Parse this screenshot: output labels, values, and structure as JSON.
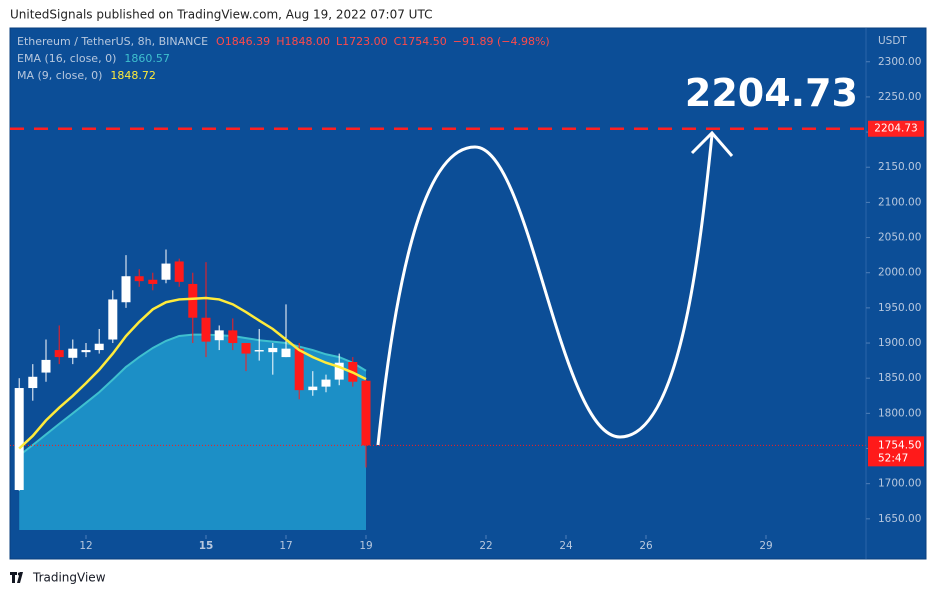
{
  "page_header": "UnitedSignals published on TradingView.com, Aug 19, 2022 07:07 UTC",
  "footer": "TradingView",
  "chart_data": {
    "type": "candlestick",
    "symbol": "Ethereum / TetherUS, 8h, BINANCE",
    "ohlc_text": [
      "O1846.39",
      "H1848.00",
      "L1723.00",
      "C1754.50"
    ],
    "change_text": "−91.89 (−4.98%)",
    "currency": "USDT",
    "countdown": "52:47",
    "x": [
      10.33,
      10.67,
      11,
      11.33,
      11.67,
      12,
      12.33,
      12.67,
      13,
      13.33,
      13.67,
      14,
      14.33,
      14.67,
      15,
      15.33,
      15.67,
      16,
      16.33,
      16.67,
      17,
      17.33,
      17.67,
      18,
      18.33,
      18.67,
      19
    ],
    "open": [
      1691,
      1836,
      1858,
      1890,
      1879,
      1887,
      1890,
      1905,
      1958,
      1995,
      1990,
      1990,
      2016,
      1984,
      1936,
      1904,
      1918,
      1900,
      1888,
      1887,
      1880,
      1892,
      1833,
      1838,
      1848,
      1873,
      1846.39
    ],
    "high": [
      1850,
      1870,
      1905,
      1925,
      1905,
      1900,
      1920,
      1975,
      2025,
      2005,
      2000,
      2033,
      2020,
      2000,
      2015,
      1925,
      1935,
      1900,
      1920,
      1900,
      1955,
      1900,
      1860,
      1855,
      1885,
      1880,
      1848
    ],
    "low": [
      1690,
      1818,
      1845,
      1870,
      1870,
      1880,
      1885,
      1900,
      1950,
      1980,
      1975,
      1985,
      1980,
      1900,
      1880,
      1890,
      1890,
      1860,
      1875,
      1855,
      1880,
      1820,
      1825,
      1830,
      1840,
      1838,
      1723
    ],
    "close": [
      1836,
      1852,
      1876,
      1880,
      1892,
      1890,
      1899,
      1962,
      1995,
      1988,
      1984,
      2013,
      1987,
      1936,
      1902,
      1918,
      1900,
      1885,
      1890,
      1893,
      1892,
      1833,
      1838,
      1848,
      1872,
      1845,
      1754.5
    ],
    "up_color": "#ffffff",
    "down_color": "#ff1a1a",
    "series": [
      {
        "name": "EMA (16, close, 0)",
        "color": "#1c8fc6",
        "line_color": "#3fc0cf",
        "values": [
          1740,
          1755,
          1770,
          1785,
          1800,
          1815,
          1830,
          1848,
          1866,
          1880,
          1893,
          1903,
          1910,
          1912,
          1912,
          1911,
          1910,
          1907,
          1904,
          1902,
          1900,
          1895,
          1890,
          1884,
          1880,
          1872,
          1860.57
        ]
      },
      {
        "name": "MA (9, close, 0)",
        "color": "#ffeb3b",
        "values": [
          1750,
          1768,
          1790,
          1808,
          1825,
          1843,
          1862,
          1885,
          1910,
          1930,
          1948,
          1958,
          1962,
          1963,
          1964,
          1962,
          1955,
          1944,
          1932,
          1920,
          1905,
          1890,
          1880,
          1872,
          1866,
          1858,
          1848.72
        ]
      }
    ],
    "last_price": {
      "value": 1754.5,
      "label": "1754.50"
    },
    "target": 2204.73,
    "xlim": [
      10.1,
      31.5
    ],
    "xticks": [
      12,
      15,
      17,
      19,
      22,
      24,
      26,
      29
    ],
    "ylim": [
      1627,
      2348
    ],
    "yticks": [
      {
        "value": 1650,
        "label": "1650.00"
      },
      {
        "value": 1700,
        "label": "1700.00"
      },
      {
        "value": 1750,
        "label": "1750.00"
      },
      {
        "value": 1800,
        "label": "1800.00"
      },
      {
        "value": 1850,
        "label": "1850.00"
      },
      {
        "value": 1900,
        "label": "1900.00"
      },
      {
        "value": 1950,
        "label": "1950.00"
      },
      {
        "value": 2000,
        "label": "2000.00"
      },
      {
        "value": 2050,
        "label": "2050.00"
      },
      {
        "value": 2100,
        "label": "2100.00"
      },
      {
        "value": 2150,
        "label": "2150.00"
      },
      {
        "value": 2200,
        "label": "2200.00"
      },
      {
        "value": 2250,
        "label": "2250.00"
      },
      {
        "value": 2300,
        "label": "2300.00"
      }
    ],
    "background": "#0c4e97"
  }
}
